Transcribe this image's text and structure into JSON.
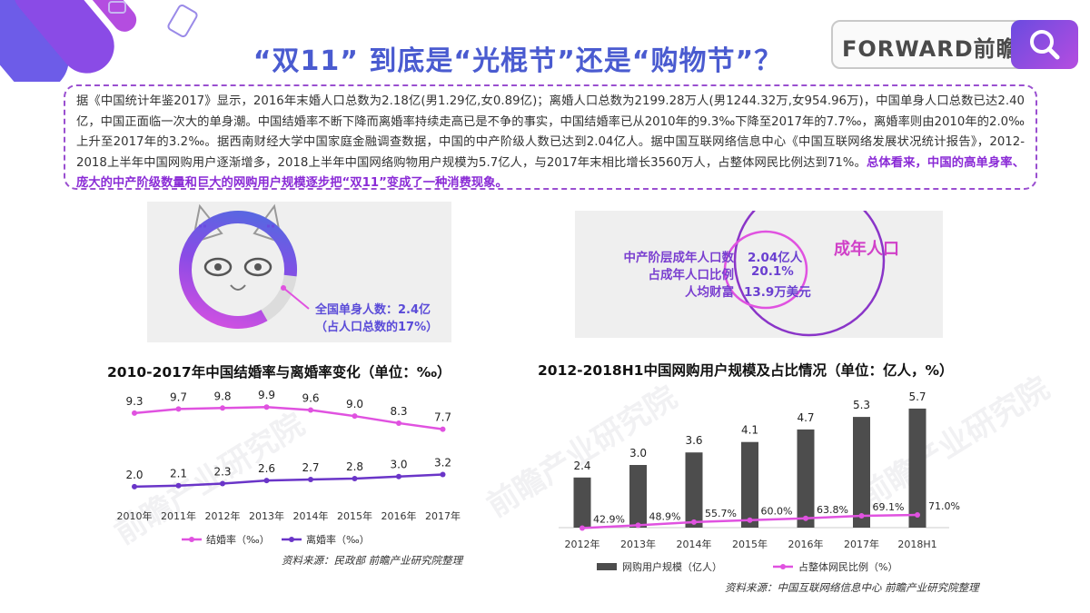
{
  "title": "“双11” 到底是“光棍节”还是“购物节”？",
  "brand": {
    "logo_text": "FORWARD前瞻",
    "search_icon": "search-icon"
  },
  "intro": {
    "text": "据《中国统计年鉴2017》显示，2016年末婚人口总数为2.18亿(男1.29亿,女0.89亿)；离婚人口总数为2199.28万人(男1244.32万,女954.96万)，中国单身人口总数已达2.40亿，中国正面临一次大的单身潮。中国结婚率不断下降而离婚率持续走高已是不争的事实，中国结婚率已从2010年的9.3‰下降至2017年的7.7‰，离婚率则由2010年的2.0‰上升至2017年的3.2‰。据西南财经大学中国家庭金融调查数据，中国的中产阶级人数已达到2.04亿人。据中国互联网络信息中心《中国互联网络发展状况统计报告》，2012-2018上半年中国网购用户逐渐增多，2018上半年中国网络购物用户规模为5.7亿人，与2017年末相比增长3560万人，占整体网民比例达到71%。",
    "highlight": "总体看来，中国的高单身率、庞大的中产阶级数量和巨大的网购用户规模逐步把“双11”变成了一种消费现象。"
  },
  "single_panel": {
    "line1": "全国单身人数：2.4亿",
    "line2": "（占人口总数的17%）"
  },
  "middle_class_panel": {
    "circle_label": "成年人口",
    "rows": [
      {
        "label": "中产阶层成年人口数",
        "value": "2.04亿人"
      },
      {
        "label": "占成年人口比例",
        "value": "20.1%"
      },
      {
        "label": "人均财富",
        "value": "13.9万美元"
      }
    ]
  },
  "colors": {
    "accent": "#4a5bd0",
    "marriage": "#e052e0",
    "divorce": "#6a35c8",
    "bar": "#4d4d4d",
    "share_line": "#e052e0"
  },
  "chart_data": [
    {
      "type": "line",
      "title": "2010-2017年中国结婚率与离婚率变化（单位：‰）",
      "categories": [
        "2010年",
        "2011年",
        "2012年",
        "2013年",
        "2014年",
        "2015年",
        "2016年",
        "2017年"
      ],
      "series": [
        {
          "name": "结婚率（‰）",
          "values": [
            9.3,
            9.7,
            9.8,
            9.9,
            9.6,
            9.0,
            8.3,
            7.7
          ]
        },
        {
          "name": "离婚率（‰）",
          "values": [
            2.0,
            2.1,
            2.3,
            2.6,
            2.7,
            2.8,
            3.0,
            3.2
          ]
        }
      ],
      "ylim": [
        0,
        11
      ],
      "grid": false,
      "legend": "bottom",
      "source": "资料来源：民政部 前瞻产业研究院整理"
    },
    {
      "type": "bar",
      "title": "2012-2018H1中国网购用户规模及占比情况（单位：亿人，%）",
      "categories": [
        "2012年",
        "2013年",
        "2014年",
        "2015年",
        "2016年",
        "2017年",
        "2018H1"
      ],
      "series": [
        {
          "name": "网购用户规模（亿人）",
          "values": [
            2.4,
            3.0,
            3.6,
            4.1,
            4.7,
            5.3,
            5.7
          ],
          "labels": [
            "2.4",
            "3.0",
            "3.6",
            "4.1",
            "4.7",
            "5.3",
            "5.7"
          ]
        },
        {
          "name": "占整体网民比例（%）",
          "type": "line",
          "values": [
            42.9,
            48.9,
            55.7,
            60.0,
            63.8,
            69.1,
            71.0
          ],
          "labels": [
            "42.9%",
            "48.9%",
            "55.7%",
            "60.0%",
            "63.8%",
            "69.1%",
            "71.0%"
          ]
        }
      ],
      "ylim": [
        0,
        6
      ],
      "grid": false,
      "legend": "bottom",
      "source": "资料来源：中国互联网络信息中心 前瞻产业研究院整理"
    }
  ]
}
